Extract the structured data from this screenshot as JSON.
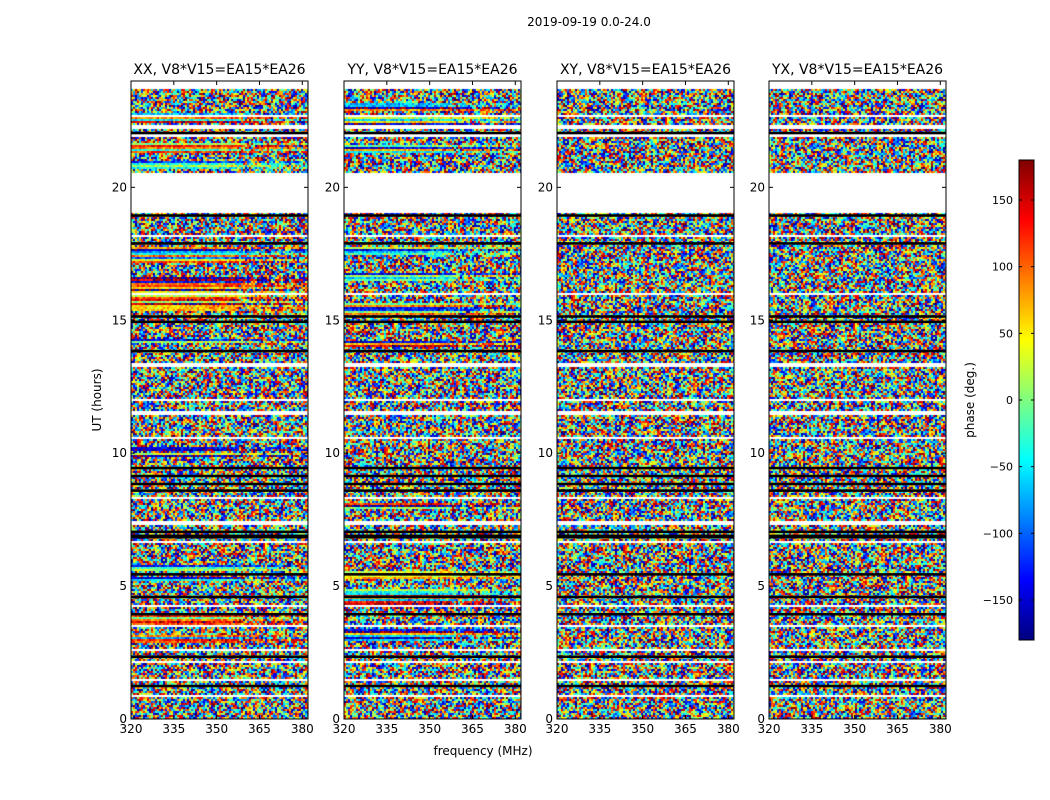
{
  "figure": {
    "title": "2019-09-19 0.0-24.0"
  },
  "chart_data": {
    "type": "heatmap",
    "title": "2019-09-19 0.0-24.0",
    "xlabel": "frequency (MHz)",
    "ylabel": "UT (hours)",
    "xlim": [
      320,
      382
    ],
    "ylim": [
      0,
      24
    ],
    "xticks": [
      "320",
      "335",
      "350",
      "365",
      "380"
    ],
    "yticks": [
      "0",
      "5",
      "10",
      "15",
      "20"
    ],
    "panels": [
      {
        "title": "XX, V8*V15=EA15*EA26",
        "polarization": "XX",
        "coherent": [
          [
            22.45,
            22.85
          ],
          [
            21.3,
            21.7
          ],
          [
            20.75,
            21.0
          ],
          [
            17.2,
            17.8
          ],
          [
            16.1,
            16.7
          ],
          [
            15.4,
            16.0
          ],
          [
            14.2,
            14.35
          ],
          [
            10.1,
            10.3
          ],
          [
            9.9,
            10.05
          ],
          [
            5.6,
            5.8
          ],
          [
            5.2,
            5.4
          ],
          [
            3.6,
            4.0
          ],
          [
            2.9,
            3.2
          ]
        ]
      },
      {
        "title": "YY, V8*V15=EA15*EA26",
        "polarization": "YY",
        "coherent": [
          [
            22.9,
            23.2
          ],
          [
            22.4,
            22.65
          ],
          [
            21.3,
            21.6
          ],
          [
            17.5,
            17.8
          ],
          [
            16.5,
            16.8
          ],
          [
            15.2,
            15.7
          ],
          [
            14.0,
            14.25
          ],
          [
            7.95,
            8.15
          ],
          [
            5.3,
            5.6
          ],
          [
            4.3,
            4.9
          ],
          [
            3.0,
            3.4
          ]
        ]
      },
      {
        "title": "XY, V8*V15=EA15*EA26",
        "polarization": "XY",
        "coherent": []
      },
      {
        "title": "YX, V8*V15=EA15*EA26",
        "polarization": "YX",
        "coherent": []
      }
    ],
    "blank_bands": [
      [
        23.75,
        24
      ],
      [
        22.65,
        22.75
      ],
      [
        22.2,
        22.35
      ],
      [
        21.95,
        22.05
      ],
      [
        20.4,
        20.55
      ],
      [
        19.1,
        20.45
      ],
      [
        18.15,
        18.25
      ],
      [
        17.1,
        17.15
      ],
      [
        16.0,
        16.05
      ],
      [
        13.3,
        13.4
      ],
      [
        12.0,
        12.1
      ],
      [
        11.5,
        11.6
      ],
      [
        10.55,
        10.65
      ],
      [
        8.3,
        8.4
      ],
      [
        7.35,
        7.45
      ],
      [
        6.65,
        6.75
      ],
      [
        4.25,
        4.3
      ],
      [
        3.5,
        3.55
      ],
      [
        2.6,
        2.65
      ],
      [
        2.15,
        2.2
      ],
      [
        1.5,
        1.55
      ],
      [
        0.9,
        0.95
      ]
    ],
    "dark_rows": [
      22.05,
      18.95,
      17.9,
      15.15,
      14.95,
      13.85,
      9.45,
      9.15,
      8.85,
      8.6,
      7.05,
      6.9,
      6.85,
      5.45,
      4.6,
      3.95,
      2.35,
      1.25
    ],
    "colorbar": {
      "label": "phase (deg.)",
      "range": [
        -180,
        180
      ],
      "ticks": [
        "150",
        "100",
        "50",
        "0",
        "−50",
        "−100",
        "−150"
      ],
      "tick_values": [
        150,
        100,
        50,
        0,
        -50,
        -100,
        -150
      ],
      "colormap": "jet",
      "colors": [
        "#00007f",
        "#0000ff",
        "#007fff",
        "#00ffff",
        "#7fff7f",
        "#ffff00",
        "#ff7f00",
        "#ff0000",
        "#7f0000"
      ]
    }
  }
}
